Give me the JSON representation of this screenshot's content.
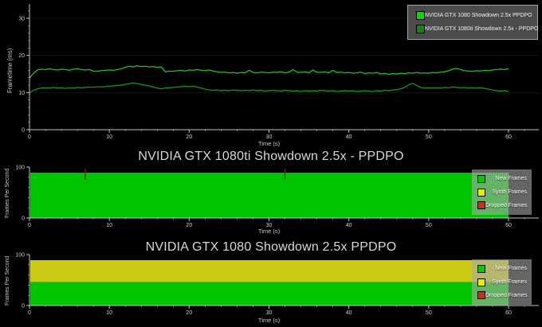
{
  "chart_data": [
    {
      "type": "line",
      "title": "",
      "xlabel": "Time (s)",
      "ylabel": "Frametime (ms)",
      "xlim": [
        0,
        64
      ],
      "ylim": [
        0,
        34
      ],
      "xticks": [
        0,
        10,
        20,
        30,
        40,
        50,
        60
      ],
      "yticks": [
        0,
        10,
        20,
        30
      ],
      "grid": false,
      "legend_position": "top-right",
      "x_start": 0,
      "x_step": 0.5,
      "series": [
        {
          "name": "NVIDIA GTX  1080 Showdown 2.5x PPDPO",
          "color": "#2bd32b",
          "swatch": "#00dc00",
          "values": [
            13.9,
            15.2,
            16.1,
            16.3,
            16.2,
            16.4,
            16.2,
            16.1,
            16.3,
            16.2,
            16.0,
            16.3,
            16.4,
            16.2,
            16.1,
            16.2,
            15.8,
            15.7,
            15.9,
            16.0,
            16.1,
            16.0,
            16.2,
            16.4,
            16.8,
            17.1,
            16.9,
            17.2,
            17.0,
            17.1,
            16.9,
            17.0,
            16.8,
            16.9,
            15.6,
            15.8,
            15.7,
            15.9,
            16.0,
            15.8,
            16.1,
            16.0,
            16.2,
            16.0,
            15.9,
            16.1,
            15.8,
            15.6,
            15.4,
            15.5,
            15.3,
            15.4,
            15.2,
            15.4,
            15.3,
            16.0,
            15.4,
            15.3,
            15.5,
            15.4,
            15.3,
            15.5,
            15.4,
            15.6,
            15.3,
            15.5,
            16.2,
            15.5,
            15.4,
            15.6,
            15.3,
            16.1,
            15.5,
            15.4,
            15.6,
            15.3,
            16.0,
            15.4,
            15.5,
            15.3,
            15.4,
            15.2,
            15.3,
            15.5,
            15.1,
            15.3,
            15.2,
            15.4,
            15.0,
            15.2,
            14.9,
            15.1,
            15.0,
            15.2,
            15.1,
            15.3,
            15.2,
            15.4,
            15.2,
            15.3,
            15.2,
            15.4,
            15.3,
            15.5,
            15.6,
            15.9,
            16.3,
            16.5,
            16.2,
            15.9,
            15.8,
            15.7,
            15.9,
            15.8,
            16.0,
            15.9,
            16.1,
            16.2,
            16.3,
            16.2,
            16.4
          ]
        },
        {
          "name": "NVIDIA GTX 1080ti Showdown 2.5x - PPDPO",
          "color": "#21a221",
          "swatch": "#1e7a1e",
          "values": [
            9.9,
            10.6,
            11.0,
            11.2,
            11.3,
            11.2,
            11.4,
            11.2,
            11.3,
            11.1,
            11.3,
            11.2,
            11.4,
            11.3,
            11.4,
            11.5,
            11.4,
            11.6,
            11.5,
            11.6,
            11.7,
            11.8,
            11.9,
            12.0,
            12.2,
            12.4,
            12.6,
            12.4,
            12.2,
            12.0,
            11.8,
            11.5,
            11.2,
            11.0,
            11.2,
            11.3,
            11.4,
            11.5,
            11.6,
            11.7,
            11.6,
            11.7,
            11.5,
            11.2,
            10.9,
            10.7,
            10.6,
            10.7,
            10.5,
            10.6,
            10.5,
            10.7,
            10.6,
            10.5,
            10.6,
            10.5,
            10.7,
            10.5,
            10.6,
            10.4,
            10.5,
            10.6,
            10.5,
            10.4,
            10.6,
            10.5,
            10.4,
            10.5,
            10.3,
            10.5,
            10.4,
            10.5,
            10.4,
            10.6,
            10.5,
            10.4,
            10.5,
            10.3,
            10.4,
            10.5,
            10.4,
            10.5,
            10.3,
            10.4,
            10.5,
            10.4,
            10.3,
            10.5,
            10.4,
            10.6,
            10.5,
            10.7,
            10.8,
            11.0,
            11.4,
            12.1,
            12.5,
            11.9,
            11.4,
            11.2,
            11.3,
            11.2,
            11.3,
            11.2,
            11.4,
            11.3,
            11.5,
            11.4,
            11.3,
            11.4,
            11.2,
            11.3,
            11.2,
            11.3,
            11.1,
            10.9,
            10.7,
            10.5,
            10.4,
            10.5,
            10.3
          ]
        }
      ]
    },
    {
      "type": "area",
      "title": "NVIDIA GTX 1080ti Showdown 2.5x - PPDPO",
      "xlabel": "Time (s)",
      "ylabel": "Frames Per Second",
      "xlim": [
        0,
        64
      ],
      "ylim": [
        0,
        100
      ],
      "xticks": [
        0,
        10,
        20,
        30,
        40,
        50,
        60
      ],
      "yticks": [
        0,
        100
      ],
      "x_range": [
        0,
        60
      ],
      "stack": [
        {
          "name": "New Frames",
          "color": "#00c400",
          "value": 89
        },
        {
          "name": "Synth Frames",
          "color": "#cbcb16",
          "value": 0
        }
      ],
      "dropped_frame_times": [
        7,
        32
      ],
      "dropped_color": "#7a2113",
      "legend_position": "right",
      "legend": [
        {
          "label": "New Frames",
          "color": "#00cc00"
        },
        {
          "label": "Synth Frames",
          "color": "#ebeb00"
        },
        {
          "label": "Dropped Frames",
          "color": "#c23418"
        }
      ]
    },
    {
      "type": "area",
      "title": "NVIDIA GTX 1080 Showdown 2.5x PPDPO",
      "xlabel": "Time (s)",
      "ylabel": "Frames Per Second",
      "xlim": [
        0,
        64
      ],
      "ylim": [
        0,
        100
      ],
      "xticks": [
        0,
        10,
        20,
        30,
        40,
        50,
        60
      ],
      "yticks": [
        0,
        100
      ],
      "x_range": [
        0,
        60
      ],
      "stack": [
        {
          "name": "New Frames",
          "color": "#00c400",
          "value": 46
        },
        {
          "name": "Synth Frames",
          "color": "#cbcb16",
          "value": 43
        }
      ],
      "dropped_frame_times": [],
      "dropped_color": "#7a2113",
      "legend_position": "right",
      "legend": [
        {
          "label": "New Frames",
          "color": "#00cc00"
        },
        {
          "label": "Synth Frames",
          "color": "#ebeb00"
        },
        {
          "label": "Dropped Frames",
          "color": "#c23418"
        }
      ]
    }
  ]
}
